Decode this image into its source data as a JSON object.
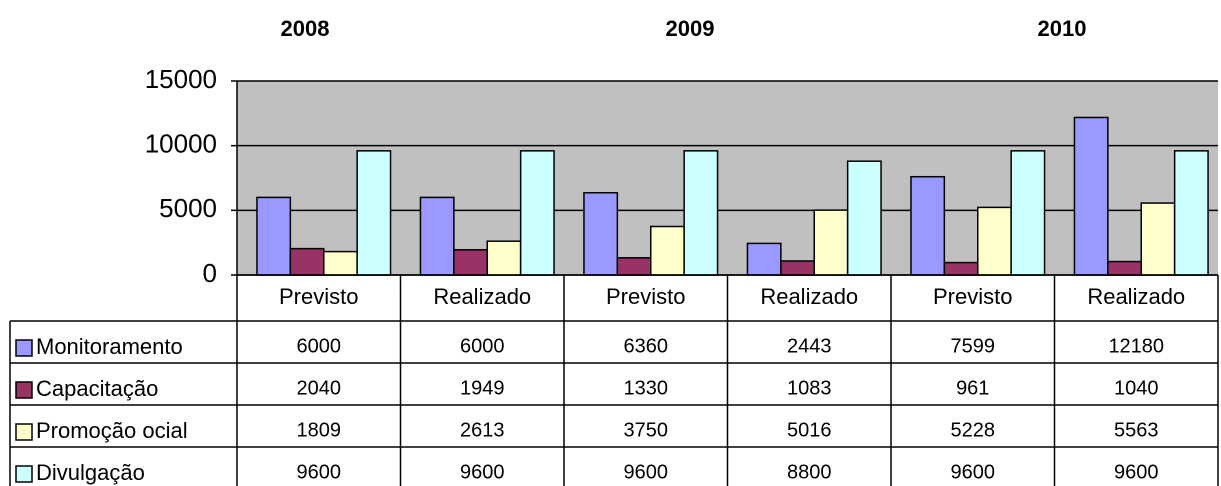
{
  "chart_data": {
    "type": "bar",
    "group_labels": [
      "2008",
      "2009",
      "2010"
    ],
    "categories": [
      "Previsto",
      "Realizado",
      "Previsto",
      "Realizado",
      "Previsto",
      "Realizado"
    ],
    "series": [
      {
        "name": "Monitoramento",
        "color": "#9999ff",
        "values": [
          6000,
          6000,
          6360,
          2443,
          7599,
          12180
        ]
      },
      {
        "name": "Capacitação",
        "color": "#993366",
        "values": [
          2040,
          1949,
          1330,
          1083,
          961,
          1040
        ]
      },
      {
        "name": "Promoção ocial",
        "color": "#ffffcc",
        "values": [
          1809,
          2613,
          3750,
          5016,
          5228,
          5563
        ]
      },
      {
        "name": "Divulgação",
        "color": "#ccffff",
        "values": [
          9600,
          9600,
          9600,
          8800,
          9600,
          9600
        ]
      }
    ],
    "ylim": [
      0,
      15000
    ],
    "yticks": [
      0,
      5000,
      10000,
      15000
    ],
    "grid": true,
    "plot_background": "#c0c0c0"
  }
}
